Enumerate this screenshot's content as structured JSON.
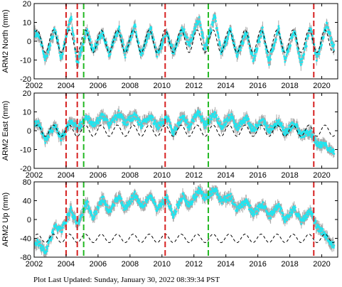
{
  "footer": "Plot Last Updated:   Sunday, January 30, 2022 08:39:34 PST",
  "colors": {
    "data": "#1fe6f0",
    "errorbar": "#a8a8a8",
    "model": "#000000",
    "vline_red": "#d62020",
    "vline_green": "#22b822"
  },
  "chart_data": [
    {
      "type": "scatter",
      "ylabel": "ARM2 North (mm)",
      "xlim": [
        2002,
        2021
      ],
      "ylim": [
        -20,
        20
      ],
      "xticks": [
        "2002",
        "2004",
        "2006",
        "2008",
        "2010",
        "2012",
        "2014",
        "2016",
        "2018",
        "2020"
      ],
      "yticks": [
        "20",
        "10",
        "0",
        "-10",
        "-20"
      ],
      "x": [
        2002.3,
        2002.7,
        2003.3,
        2003.7,
        2004.3,
        2004.7,
        2005.3,
        2005.7,
        2006.3,
        2006.7,
        2007.3,
        2007.7,
        2008.3,
        2008.7,
        2009.3,
        2009.7,
        2010.3,
        2010.7,
        2011.3,
        2011.7,
        2012.3,
        2012.7,
        2013.3,
        2013.7,
        2014.3,
        2014.7,
        2015.3,
        2015.7,
        2016.3,
        2016.7,
        2017.3,
        2017.7,
        2018.3,
        2018.7,
        2019.3,
        2019.7,
        2020.3,
        2020.7
      ],
      "y": [
        4,
        -10,
        7,
        -9,
        13,
        -12,
        6,
        -5,
        5,
        -7,
        7,
        -7,
        8,
        -7,
        7,
        -7,
        4,
        -6,
        7,
        -2,
        12,
        -4,
        13,
        -6,
        6,
        -8,
        5,
        -10,
        6,
        -11,
        7,
        -10,
        6,
        -12,
        7,
        -10,
        9,
        -3
      ],
      "model": {
        "type": "annual_sinusoid",
        "amplitude": 6,
        "phase_year": 2002.2
      },
      "offset_lines": [
        {
          "x": 2004.0,
          "color": "red"
        },
        {
          "x": 2004.7,
          "color": "red"
        },
        {
          "x": 2005.1,
          "color": "green"
        },
        {
          "x": 2010.2,
          "color": "red"
        },
        {
          "x": 2012.9,
          "color": "green"
        },
        {
          "x": 2019.5,
          "color": "red"
        }
      ],
      "grid": false
    },
    {
      "type": "scatter",
      "ylabel": "ARM2 East (mm)",
      "xlim": [
        2002,
        2021
      ],
      "ylim": [
        -20,
        20
      ],
      "xticks": [
        "2002",
        "2004",
        "2006",
        "2008",
        "2010",
        "2012",
        "2014",
        "2016",
        "2018",
        "2020"
      ],
      "yticks": [
        "20",
        "10",
        "0",
        "-10",
        "-20"
      ],
      "x": [
        2002.3,
        2002.7,
        2003.3,
        2003.7,
        2004.3,
        2004.7,
        2005.3,
        2005.7,
        2006.3,
        2006.7,
        2007.3,
        2007.7,
        2008.3,
        2008.7,
        2009.3,
        2009.7,
        2010.3,
        2010.7,
        2011.3,
        2011.7,
        2012.3,
        2012.7,
        2013.3,
        2013.7,
        2014.3,
        2014.7,
        2015.3,
        2015.7,
        2016.3,
        2016.7,
        2017.3,
        2017.7,
        2018.3,
        2018.7,
        2019.3,
        2019.7,
        2020.3,
        2020.7
      ],
      "y": [
        4,
        -5,
        3,
        -4,
        5,
        1,
        7,
        3,
        8,
        3,
        9,
        4,
        8,
        3,
        8,
        2,
        7,
        -1,
        8,
        2,
        10,
        3,
        9,
        2,
        8,
        1,
        7,
        0,
        6,
        0,
        5,
        -1,
        4,
        -2,
        -1,
        -7,
        -8,
        -11
      ],
      "model": {
        "type": "annual_sinusoid",
        "amplitude": 3,
        "phase_year": 2002.2
      },
      "offset_lines": [
        {
          "x": 2004.0,
          "color": "red"
        },
        {
          "x": 2004.7,
          "color": "red"
        },
        {
          "x": 2005.1,
          "color": "green"
        },
        {
          "x": 2010.2,
          "color": "red"
        },
        {
          "x": 2012.9,
          "color": "green"
        },
        {
          "x": 2019.5,
          "color": "red"
        }
      ],
      "grid": false
    },
    {
      "type": "scatter",
      "ylabel": "ARM2 Up (mm)",
      "xlim": [
        2002,
        2021
      ],
      "ylim": [
        -80,
        80
      ],
      "xticks": [
        "2002",
        "2004",
        "2006",
        "2008",
        "2010",
        "2012",
        "2014",
        "2016",
        "2018",
        "2020"
      ],
      "yticks": [
        "80",
        "40",
        "0",
        "-40",
        "-80"
      ],
      "x": [
        2002.3,
        2002.7,
        2003.3,
        2003.7,
        2004.3,
        2004.7,
        2005.3,
        2005.7,
        2006.3,
        2006.7,
        2007.3,
        2007.7,
        2008.3,
        2008.7,
        2009.3,
        2009.7,
        2010.3,
        2010.7,
        2011.3,
        2011.7,
        2012.3,
        2012.7,
        2013.3,
        2013.7,
        2014.3,
        2014.7,
        2015.3,
        2015.7,
        2016.3,
        2016.7,
        2017.3,
        2017.7,
        2018.3,
        2018.7,
        2019.3,
        2019.7,
        2020.3,
        2020.7
      ],
      "y": [
        -50,
        -70,
        -15,
        -25,
        20,
        -10,
        35,
        5,
        45,
        15,
        52,
        22,
        55,
        25,
        52,
        22,
        45,
        10,
        50,
        30,
        62,
        45,
        65,
        38,
        48,
        20,
        40,
        10,
        35,
        5,
        30,
        0,
        25,
        -5,
        20,
        -15,
        -35,
        -55
      ],
      "model": {
        "type": "annual_sinusoid",
        "amplitude": 9,
        "center": -40,
        "phase_year": 2002.2
      },
      "offset_lines": [
        {
          "x": 2004.0,
          "color": "red"
        },
        {
          "x": 2004.7,
          "color": "red"
        },
        {
          "x": 2005.1,
          "color": "green"
        },
        {
          "x": 2010.2,
          "color": "red"
        },
        {
          "x": 2012.9,
          "color": "green"
        },
        {
          "x": 2019.5,
          "color": "red"
        }
      ],
      "grid": false
    }
  ]
}
